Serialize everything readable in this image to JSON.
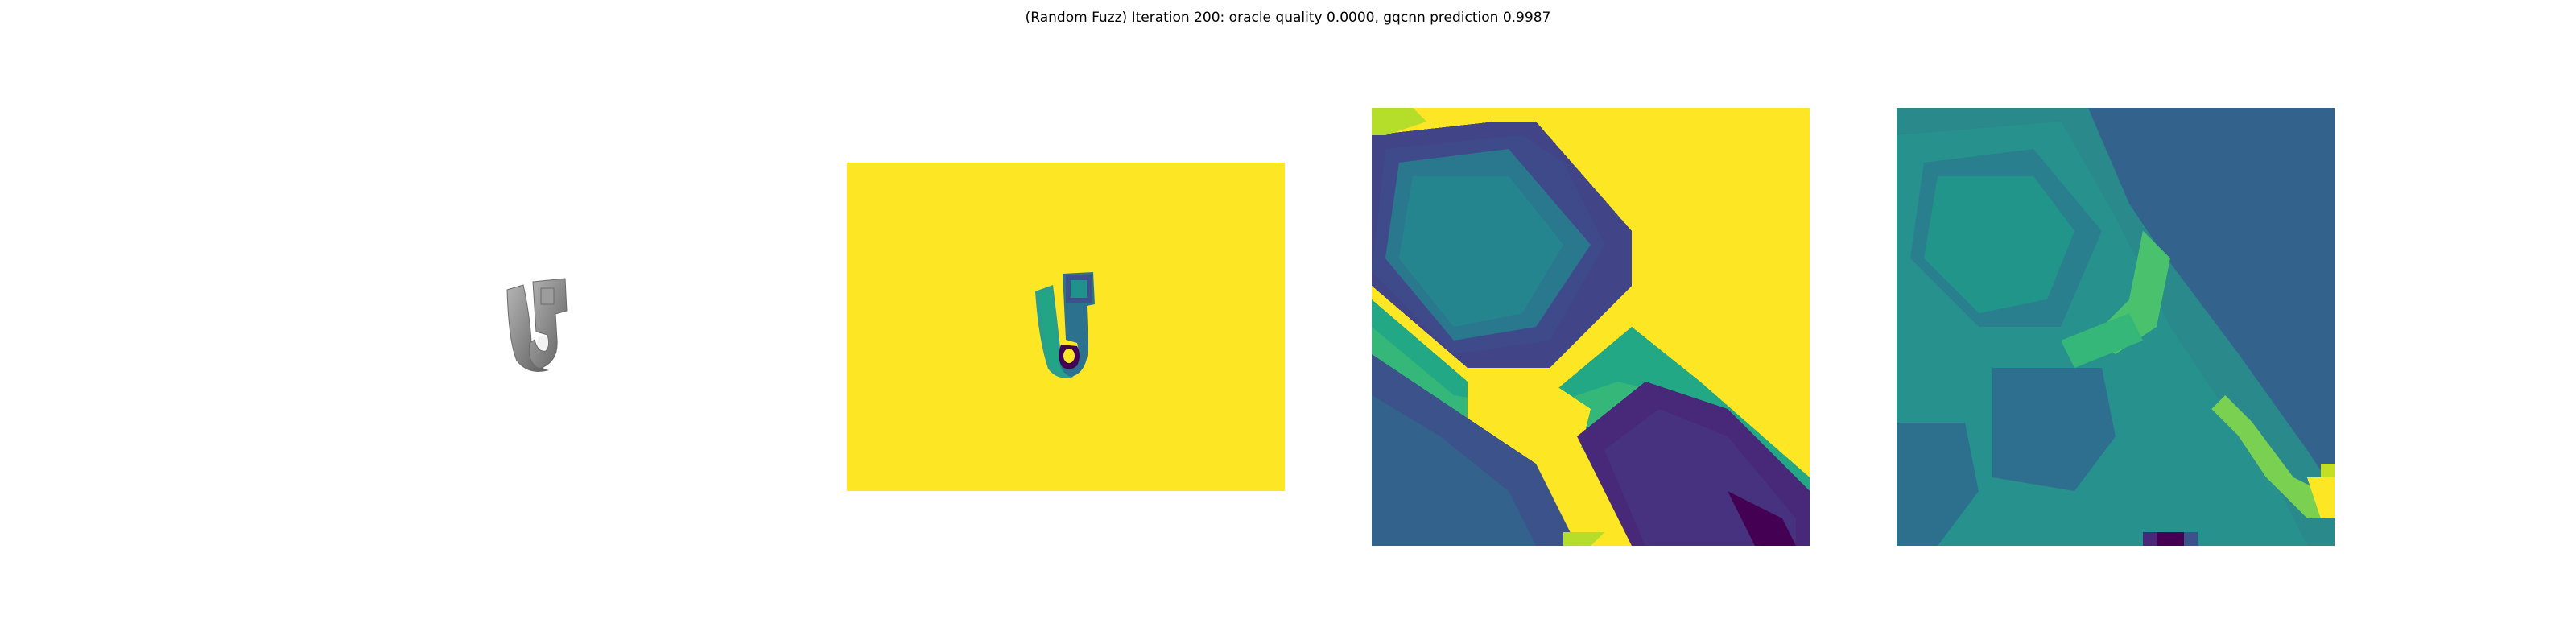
{
  "figure": {
    "title": "(Random Fuzz) Iteration 200: oracle quality 0.0000, gqcnn prediction 0.9987"
  },
  "panels": [
    {
      "id": "rendered-object",
      "content": "grayscale render of object"
    },
    {
      "id": "depth-image",
      "colormap": "viridis"
    },
    {
      "id": "depth-crop",
      "colormap": "viridis"
    },
    {
      "id": "fuzzed-crop",
      "colormap": "viridis"
    }
  ],
  "colors": {
    "viridis_yellow": "#fde725",
    "viridis_green": "#21a585",
    "viridis_teal": "#2a788e",
    "viridis_blue": "#33638d",
    "viridis_purple": "#440154",
    "viridis_indigo": "#3b528b",
    "object_gray": "#8c8c8c"
  }
}
